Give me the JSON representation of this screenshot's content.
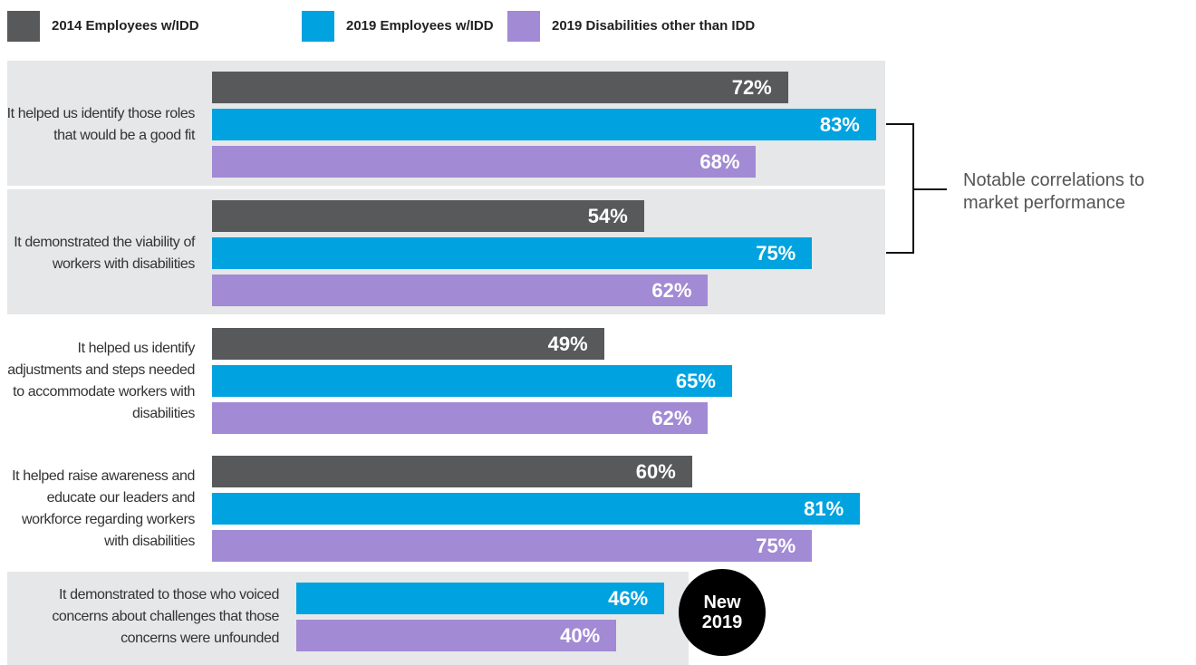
{
  "chart_data": {
    "type": "bar",
    "orientation": "horizontal",
    "categories": [
      "It helped us identify those roles that would be a good fit",
      "It demonstrated the viability of workers with disabilities",
      "It helped us identify adjustments and steps needed to accommodate workers with disabilities",
      "It helped raise awareness and educate our leaders and workforce regarding workers with disabilities",
      "It demonstrated to those who voiced concerns about challenges that those concerns were unfounded"
    ],
    "series": [
      {
        "name": "2014 Employees w/IDD",
        "color": "#58595b",
        "values": [
          72,
          54,
          49,
          60,
          null
        ],
        "value_labels": [
          "72%",
          "54%",
          "49%",
          "60%",
          null
        ]
      },
      {
        "name": "2019 Employees w/IDD",
        "color": "#00a3e0",
        "values": [
          83,
          75,
          65,
          81,
          46
        ],
        "value_labels": [
          "83%",
          "75%",
          "65%",
          "81%",
          "46%"
        ]
      },
      {
        "name": "2019 Disabilities other than IDD",
        "color": "#a28ad4",
        "values": [
          68,
          62,
          62,
          75,
          40
        ],
        "value_labels": [
          "68%",
          "62%",
          "62%",
          "75%",
          "40%"
        ]
      }
    ],
    "annotation": "Notable correlations to market performance",
    "badge": "New 2019",
    "legend": "top-left"
  }
}
